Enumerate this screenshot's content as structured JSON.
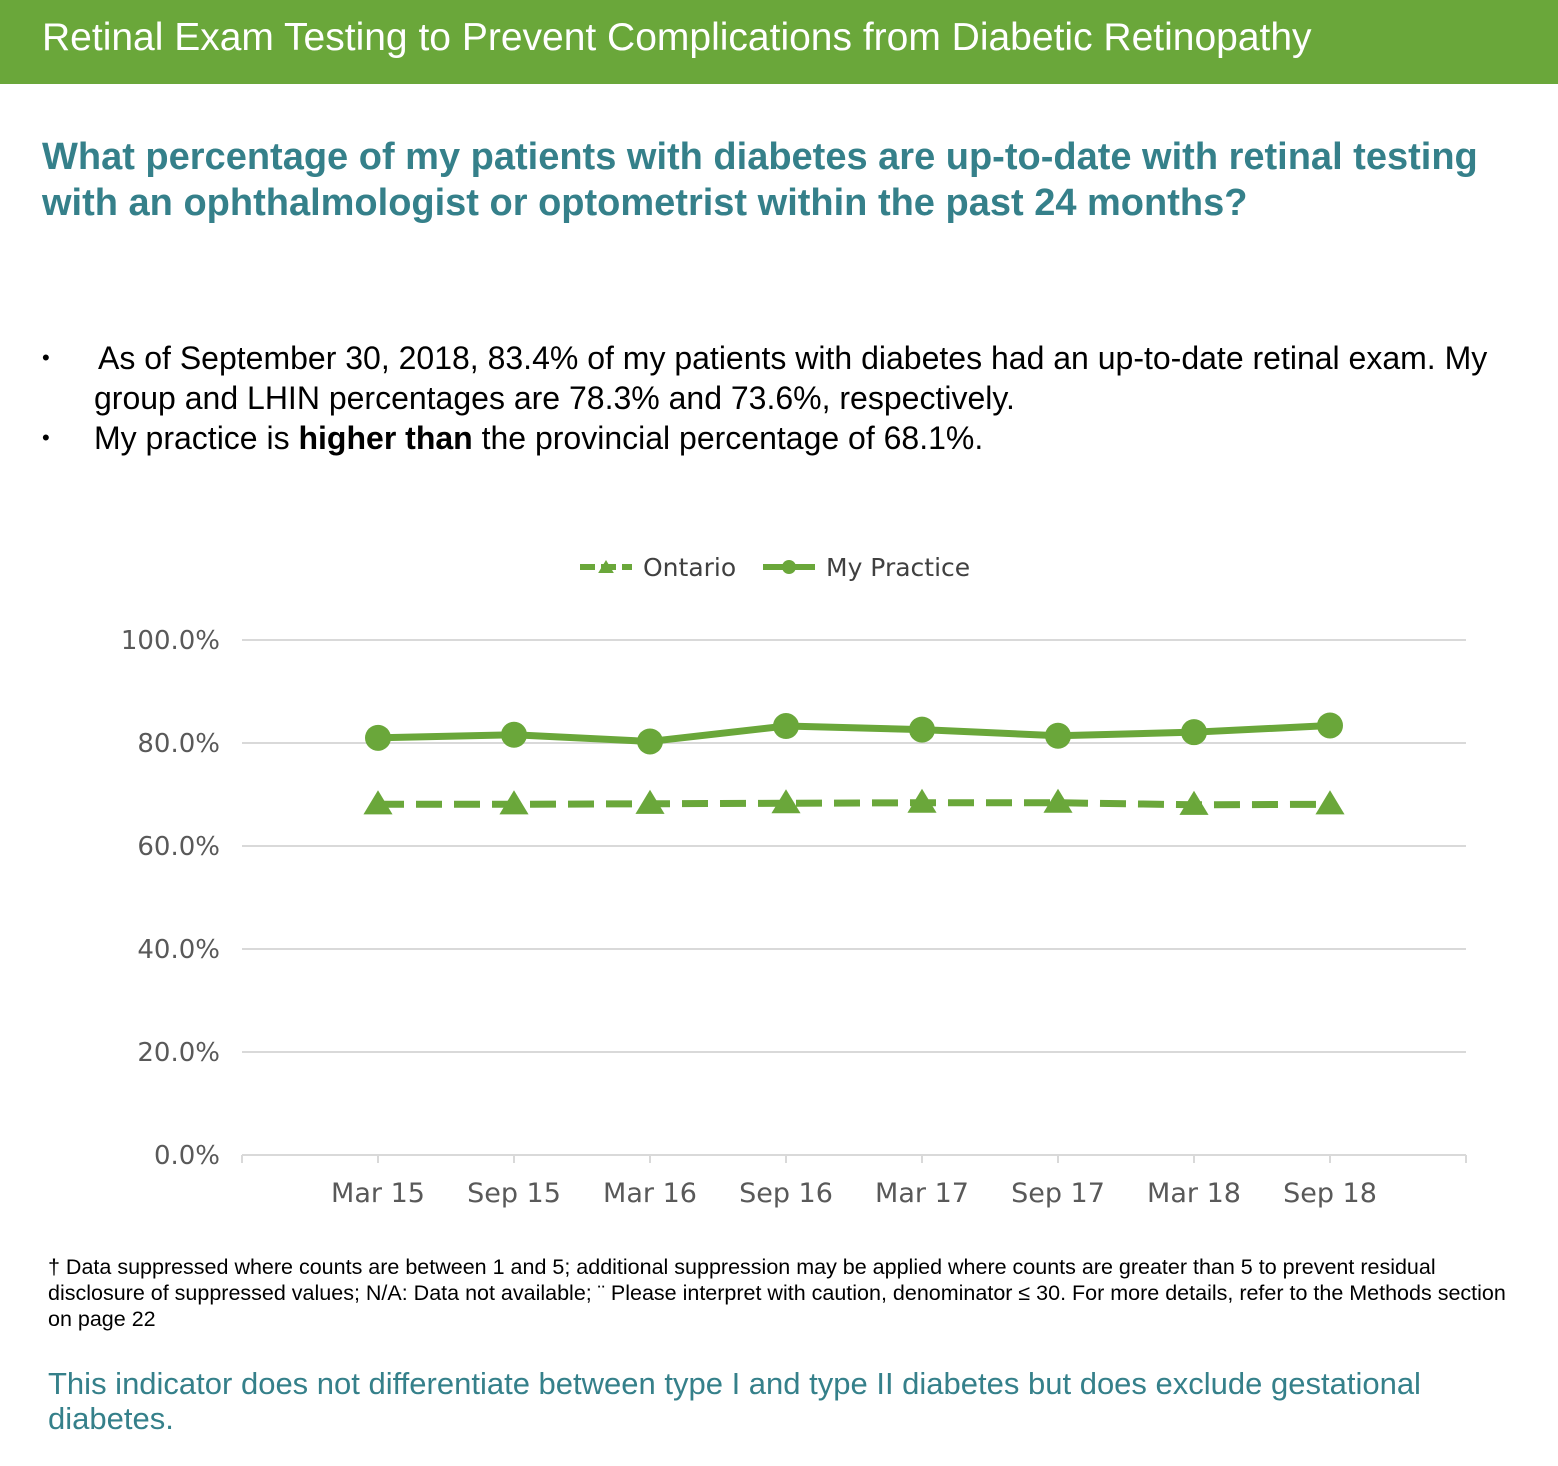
{
  "header": {
    "title": "Retinal Exam Testing to Prevent Complications from Diabetic Retinopathy",
    "question": "What percentage of my patients with diabetes are up-to-date with retinal testing with an ophthalmologist or optometrist within the past 24 months?"
  },
  "bullets": {
    "b1": "As of September 30, 2018, 83.4% of my patients with diabetes had an up-to-date retinal exam. My group and LHIN percentages are 78.3% and 73.6%, respectively.",
    "b2_pre": "My practice is ",
    "b2_bold": "higher than",
    "b2_post": " the provincial percentage of 68.1%."
  },
  "colors": {
    "accent": "#6aa73a",
    "heading": "#35808a",
    "grid": "#d9d9d9",
    "tick_text": "#595959"
  },
  "chart_data": {
    "type": "line",
    "title": "",
    "xlabel": "",
    "ylabel": "",
    "categories": [
      "Mar 15",
      "Sep 15",
      "Mar 16",
      "Sep 16",
      "Mar 17",
      "Sep 17",
      "Mar 18",
      "Sep 18"
    ],
    "ylim": [
      0,
      100
    ],
    "yticks": [
      "0.0%",
      "20.0%",
      "40.0%",
      "60.0%",
      "80.0%",
      "100.0%"
    ],
    "grid": true,
    "legend_position": "top-center",
    "series": [
      {
        "name": "Ontario",
        "style": "dashed",
        "marker": "triangle",
        "color": "#6aa73a",
        "values": [
          68.1,
          68.1,
          68.2,
          68.3,
          68.4,
          68.4,
          68.0,
          68.1
        ]
      },
      {
        "name": "My Practice",
        "style": "solid",
        "marker": "circle",
        "color": "#6aa73a",
        "values": [
          81.0,
          81.6,
          80.3,
          83.3,
          82.6,
          81.4,
          82.1,
          83.4
        ]
      }
    ]
  },
  "footer": {
    "footnote": "† Data suppressed where counts are between 1 and 5; additional suppression may be applied where counts are greater than 5 to prevent residual disclosure of suppressed values; N/A: Data not available; ¨ Please interpret with caution, denominator ≤ 30. For more details, refer to the Methods section on page 22",
    "note": "This indicator does not differentiate between type I and type II diabetes but does exclude gestational diabetes."
  }
}
